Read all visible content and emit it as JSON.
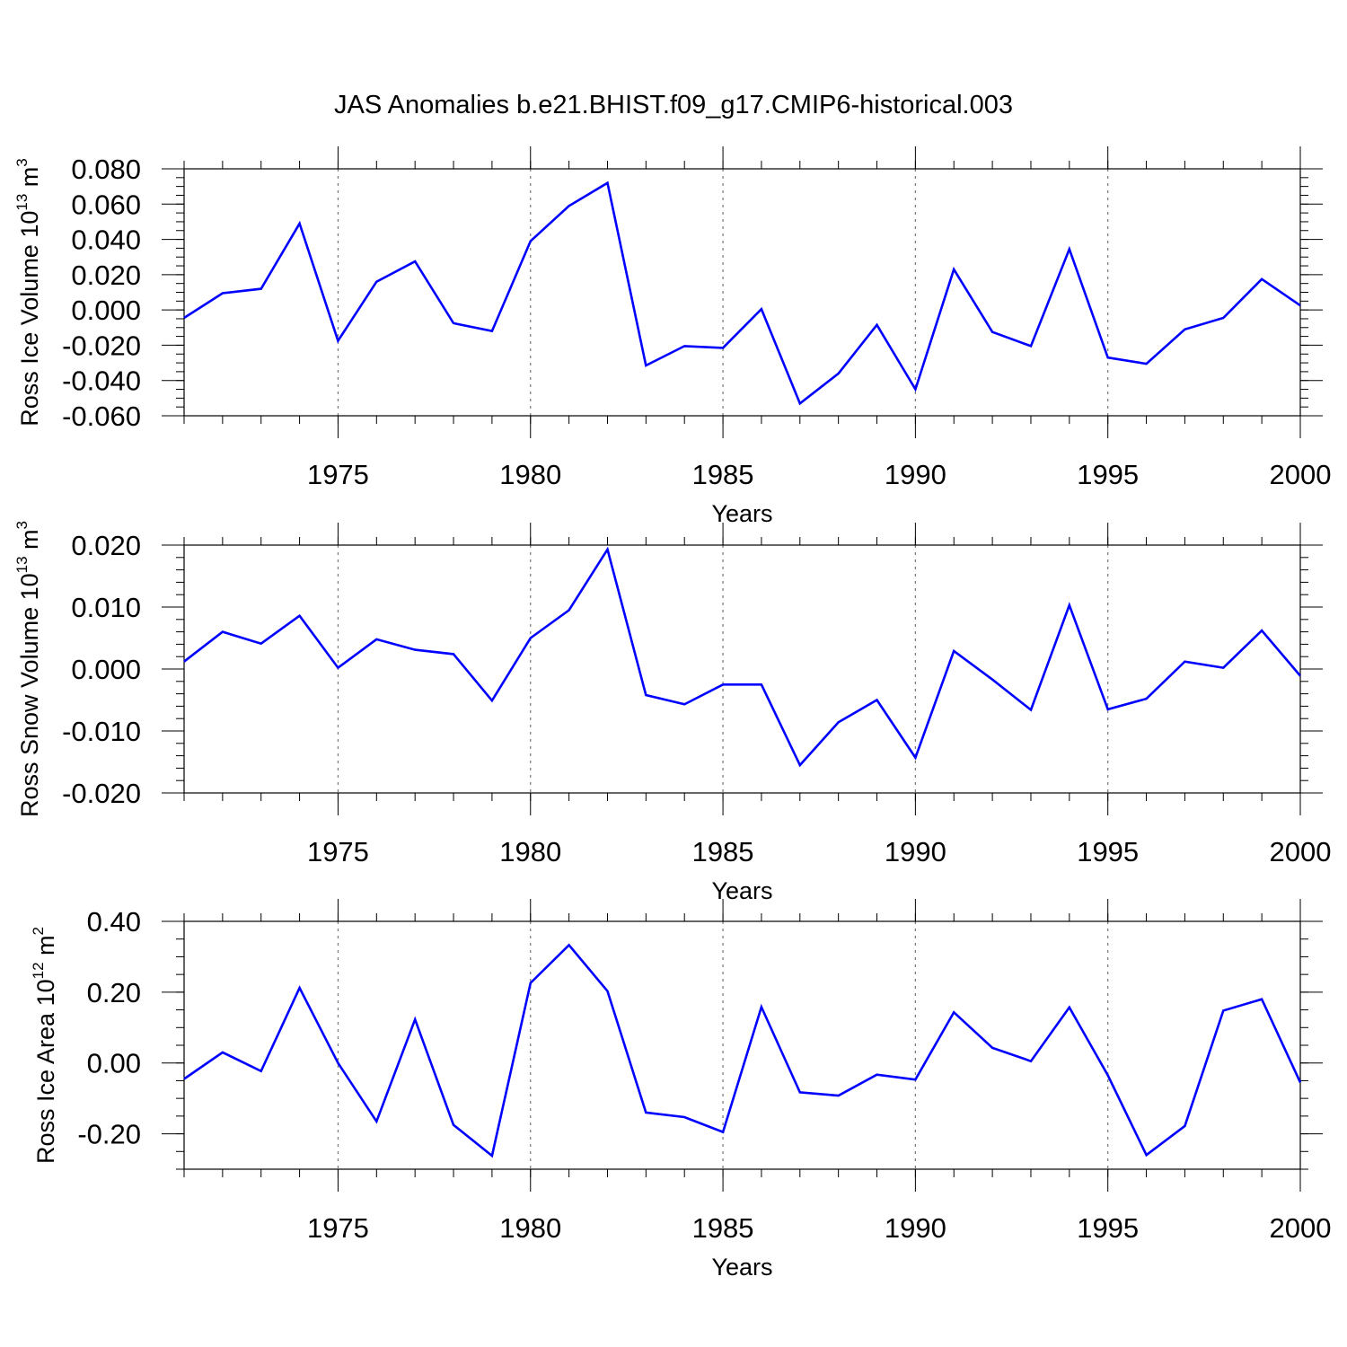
{
  "title": "JAS Anomalies b.e21.BHIST.f09_g17.CMIP6-historical.003",
  "colors": {
    "line": "#0000ff",
    "frame": "#000000"
  },
  "chart_data": [
    {
      "type": "line",
      "ylabel": "Ross Ice Volume",
      "yunit": {
        "base": "10",
        "exp": "13",
        "unit": " m",
        "unit_exp": "3"
      },
      "xlabel": "Years",
      "xlim": [
        1971,
        2000
      ],
      "ylim": [
        -0.06,
        0.08
      ],
      "yticks": [
        -0.06,
        -0.04,
        -0.02,
        0.0,
        0.02,
        0.04,
        0.06,
        0.08
      ],
      "ytick_labels": [
        "-0.060",
        "-0.040",
        "-0.020",
        "0.000",
        "0.020",
        "0.040",
        "0.060",
        "0.080"
      ],
      "yminor": 0.005,
      "xticks": [
        1975,
        1980,
        1985,
        1990,
        1995,
        2000
      ],
      "xtick_labels": [
        "1975",
        "1980",
        "1985",
        "1990",
        "1995",
        "2000"
      ],
      "grid_x": true,
      "x": [
        1971,
        1972,
        1973,
        1974,
        1975,
        1976,
        1977,
        1978,
        1979,
        1980,
        1981,
        1982,
        1983,
        1984,
        1985,
        1986,
        1987,
        1988,
        1989,
        1990,
        1991,
        1992,
        1993,
        1994,
        1995,
        1996,
        1997,
        1998,
        1999,
        2000
      ],
      "y": [
        -0.0045,
        0.0095,
        0.012,
        0.049,
        -0.0175,
        0.016,
        0.0275,
        -0.0075,
        -0.012,
        0.039,
        0.059,
        0.072,
        -0.0315,
        -0.0205,
        -0.0215,
        0.0005,
        -0.053,
        -0.036,
        -0.0085,
        -0.045,
        0.023,
        -0.0125,
        -0.0205,
        0.0345,
        -0.027,
        -0.0305,
        -0.011,
        -0.0045,
        0.0175,
        0.0025
      ]
    },
    {
      "type": "line",
      "ylabel": "Ross Snow Volume",
      "yunit": {
        "base": "10",
        "exp": "13",
        "unit": " m",
        "unit_exp": "3"
      },
      "xlabel": "Years",
      "xlim": [
        1971,
        2000
      ],
      "ylim": [
        -0.02,
        0.02
      ],
      "yticks": [
        -0.02,
        -0.01,
        0.0,
        0.01,
        0.02
      ],
      "ytick_labels": [
        "-0.020",
        "-0.010",
        "0.000",
        "0.010",
        "0.020"
      ],
      "yminor": 0.002,
      "xticks": [
        1975,
        1980,
        1985,
        1990,
        1995,
        2000
      ],
      "xtick_labels": [
        "1975",
        "1980",
        "1985",
        "1990",
        "1995",
        "2000"
      ],
      "grid_x": true,
      "x": [
        1971,
        1972,
        1973,
        1974,
        1975,
        1976,
        1977,
        1978,
        1979,
        1980,
        1981,
        1982,
        1983,
        1984,
        1985,
        1986,
        1987,
        1988,
        1989,
        1990,
        1991,
        1992,
        1993,
        1994,
        1995,
        1996,
        1997,
        1998,
        1999,
        2000
      ],
      "y": [
        0.0012,
        0.006,
        0.0041,
        0.0086,
        0.0002,
        0.0048,
        0.0031,
        0.0024,
        -0.0051,
        0.005,
        0.0095,
        0.0193,
        -0.0042,
        -0.0057,
        -0.0025,
        -0.0025,
        -0.0155,
        -0.0086,
        -0.005,
        -0.0143,
        0.0029,
        -0.0017,
        -0.0066,
        0.0103,
        -0.0065,
        -0.0048,
        0.0012,
        0.0002,
        0.0062,
        -0.0011
      ]
    },
    {
      "type": "line",
      "ylabel": "Ross Ice Area",
      "yunit": {
        "base": "10",
        "exp": "12",
        "unit": " m",
        "unit_exp": "2"
      },
      "xlabel": "Years",
      "xlim": [
        1971,
        2000
      ],
      "ylim": [
        -0.3,
        0.4
      ],
      "yticks": [
        -0.2,
        0.0,
        0.2,
        0.4
      ],
      "ytick_labels": [
        "-0.20",
        "0.00",
        "0.20",
        "0.40"
      ],
      "yminor": 0.05,
      "xticks": [
        1975,
        1980,
        1985,
        1990,
        1995,
        2000
      ],
      "xtick_labels": [
        "1975",
        "1980",
        "1985",
        "1990",
        "1995",
        "2000"
      ],
      "grid_x": true,
      "x": [
        1971,
        1972,
        1973,
        1974,
        1975,
        1976,
        1977,
        1978,
        1979,
        1980,
        1981,
        1982,
        1983,
        1984,
        1985,
        1986,
        1987,
        1988,
        1989,
        1990,
        1991,
        1992,
        1993,
        1994,
        1995,
        1996,
        1997,
        1998,
        1999,
        2000
      ],
      "y": [
        -0.045,
        0.03,
        -0.023,
        0.212,
        0.0,
        -0.165,
        0.123,
        -0.175,
        -0.262,
        0.226,
        0.333,
        0.203,
        -0.14,
        -0.153,
        -0.195,
        0.158,
        -0.083,
        -0.092,
        -0.033,
        -0.047,
        0.143,
        0.043,
        0.005,
        0.157,
        -0.035,
        -0.26,
        -0.178,
        0.148,
        0.18,
        -0.055
      ]
    }
  ]
}
